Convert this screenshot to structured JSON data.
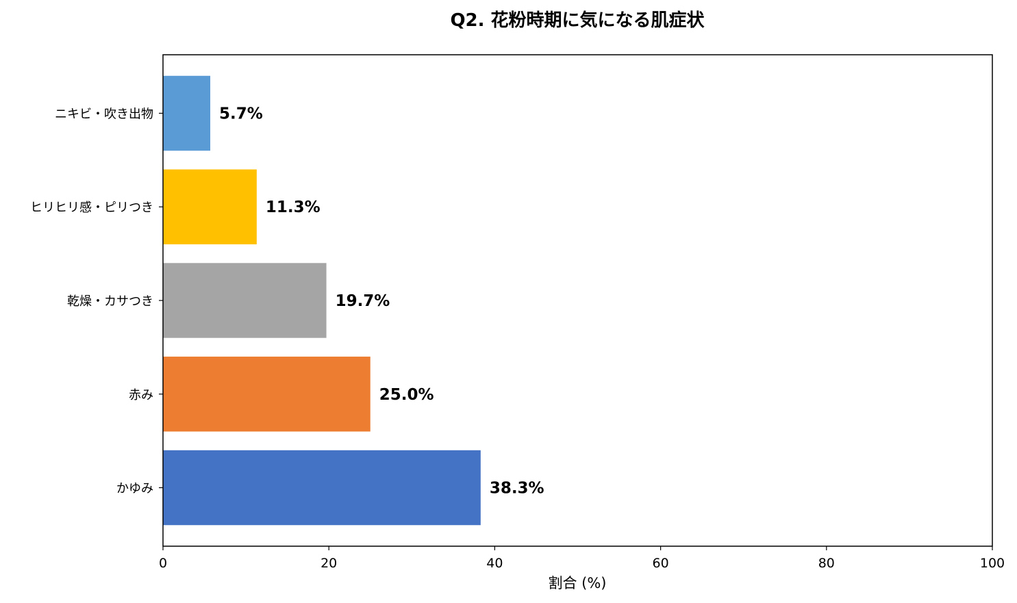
{
  "chart_data": {
    "type": "bar",
    "orientation": "horizontal",
    "title": "Q2. 花粉時期に気になる肌症状",
    "xlabel": "割合 (%)",
    "ylabel": "",
    "xlim": [
      0,
      100
    ],
    "xticks": [
      "0",
      "20",
      "40",
      "60",
      "80",
      "100"
    ],
    "grid": false,
    "categories": [
      "かゆみ",
      "赤み",
      "乾燥・カサつき",
      "ヒリヒリ感・ピリつき",
      "ニキビ・吹き出物"
    ],
    "values": [
      38.3,
      25.0,
      19.7,
      11.3,
      5.7
    ],
    "value_labels": [
      "38.3%",
      "25.0%",
      "19.7%",
      "11.3%",
      "5.7%"
    ],
    "colors": [
      "#4472C4",
      "#ED7D31",
      "#A5A5A5",
      "#FFC000",
      "#5B9BD5"
    ]
  }
}
